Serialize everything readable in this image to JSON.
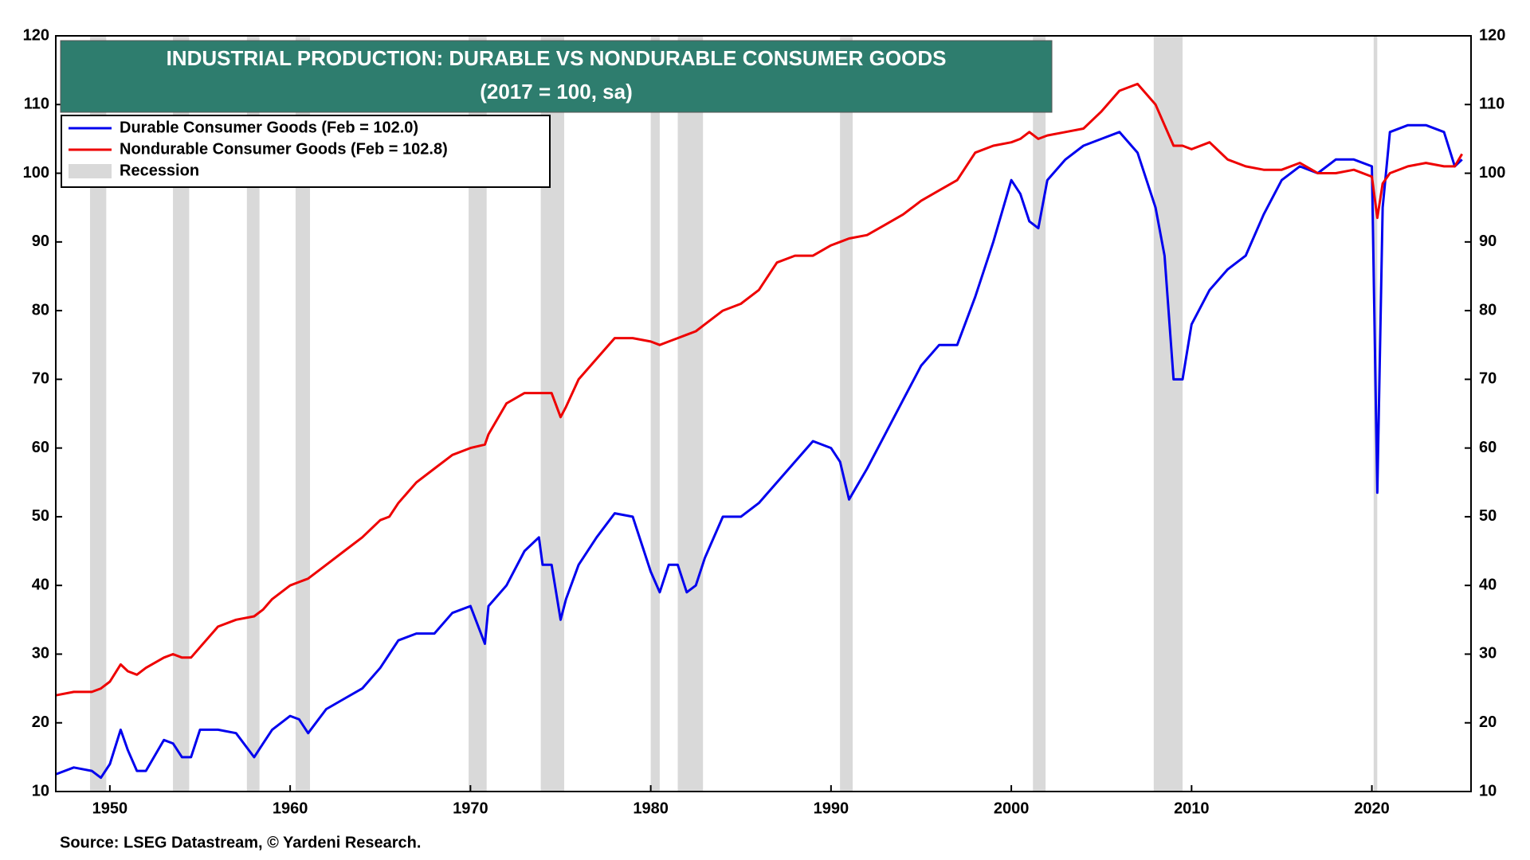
{
  "chart_data": {
    "type": "line",
    "title": "INDUSTRIAL PRODUCTION: DURABLE VS NONDURABLE CONSUMER GOODS",
    "subtitle": "(2017 = 100, sa)",
    "source": "Source: LSEG Datastream, © Yardeni Research.",
    "x": [
      1947,
      1948,
      1949,
      1949.5,
      1950,
      1950.6,
      1951,
      1951.5,
      1952,
      1953,
      1953.5,
      1954,
      1954.5,
      1955,
      1956,
      1957,
      1958,
      1958.5,
      1959,
      1960,
      1960.5,
      1961,
      1962,
      1963,
      1964,
      1965,
      1965.5,
      1966,
      1967,
      1968,
      1969,
      1970,
      1970.8,
      1971,
      1972,
      1973,
      1973.8,
      1974,
      1974.5,
      1975,
      1975.3,
      1976,
      1977,
      1978,
      1979,
      1980,
      1980.5,
      1981,
      1981.5,
      1982,
      1982.5,
      1983,
      1984,
      1985,
      1986,
      1987,
      1988,
      1989,
      1990,
      1990.5,
      1991,
      1992,
      1993,
      1994,
      1995,
      1996,
      1997,
      1998,
      1999,
      2000,
      2000.5,
      2001,
      2001.5,
      2002,
      2003,
      2004,
      2005,
      2006,
      2007,
      2008,
      2008.5,
      2009,
      2009.5,
      2010,
      2011,
      2012,
      2013,
      2014,
      2015,
      2016,
      2017,
      2018,
      2019,
      2020,
      2020.3,
      2020.6,
      2021,
      2022,
      2023,
      2024,
      2024.6,
      2025
    ],
    "series": [
      {
        "name": "Durable Consumer Goods (Feb = 102.0)",
        "color": "#0000ee",
        "values": [
          12.5,
          13.5,
          13,
          12,
          14,
          19,
          16,
          13,
          13,
          17.5,
          17,
          15,
          15,
          19,
          19,
          18.5,
          15,
          17,
          19,
          21,
          20.5,
          18.5,
          22,
          23.5,
          25,
          28,
          30,
          32,
          33,
          33,
          36,
          37,
          31.5,
          37,
          40,
          45,
          47,
          43,
          43,
          35,
          38,
          43,
          47,
          50.5,
          50,
          42,
          39,
          43,
          43,
          39,
          40,
          44,
          50,
          50,
          52,
          55,
          58,
          61,
          60,
          58,
          52.5,
          57,
          62,
          67,
          72,
          75,
          75,
          82,
          90,
          99,
          97,
          93,
          92,
          99,
          102,
          104,
          105,
          106,
          103,
          95,
          88,
          70,
          70,
          78,
          83,
          86,
          88,
          94,
          99,
          101,
          100,
          102,
          102,
          101,
          53.5,
          95,
          106,
          107,
          107,
          106,
          101,
          102
        ]
      },
      {
        "name": "Nondurable Consumer Goods (Feb = 102.8)",
        "color": "#ee0000",
        "values": [
          24,
          24.5,
          24.5,
          25,
          26,
          28.5,
          27.5,
          27,
          28,
          29.5,
          30,
          29.5,
          29.5,
          31,
          34,
          35,
          35.5,
          36.5,
          38,
          40,
          40.5,
          41,
          43,
          45,
          47,
          49.5,
          50,
          52,
          55,
          57,
          59,
          60,
          60.5,
          62,
          66.5,
          68,
          68,
          68,
          68,
          64.5,
          66,
          70,
          73,
          76,
          76,
          75.5,
          75,
          75.5,
          76,
          76.5,
          77,
          78,
          80,
          81,
          83,
          87,
          88,
          88,
          89.5,
          90,
          90.5,
          91,
          92.5,
          94,
          96,
          97.5,
          99,
          103,
          104,
          104.5,
          105,
          106,
          105,
          105.5,
          106,
          106.5,
          109,
          112,
          113,
          110,
          107,
          104,
          104,
          103.5,
          104.5,
          102,
          101,
          100.5,
          100.5,
          101.5,
          100,
          100,
          100.5,
          99.5,
          93.5,
          98.5,
          100,
          101,
          101.5,
          101,
          101,
          102.8
        ]
      }
    ],
    "recession_label": "Recession",
    "recession_color": "#d9d9d9",
    "recessions": [
      [
        1948.9,
        1949.8
      ],
      [
        1953.5,
        1954.4
      ],
      [
        1957.6,
        1958.3
      ],
      [
        1960.3,
        1961.1
      ],
      [
        1969.9,
        1970.9
      ],
      [
        1973.9,
        1975.2
      ],
      [
        1980.0,
        1980.5
      ],
      [
        1981.5,
        1982.9
      ],
      [
        1990.5,
        1991.2
      ],
      [
        2001.2,
        2001.9
      ],
      [
        2007.9,
        2009.5
      ],
      [
        2020.1,
        2020.3
      ]
    ],
    "xlim": [
      1947,
      2025.5
    ],
    "xticks": [
      1950,
      1960,
      1970,
      1980,
      1990,
      2000,
      2010,
      2020
    ],
    "ylim": [
      10,
      120
    ],
    "yticks": [
      10,
      20,
      30,
      40,
      50,
      60,
      70,
      80,
      90,
      100,
      110,
      120
    ],
    "y2lim": [
      10,
      120
    ],
    "y2ticks": [
      10,
      20,
      30,
      40,
      50,
      60,
      70,
      80,
      90,
      100,
      110,
      120
    ],
    "grid": false,
    "legend": "upper left"
  }
}
